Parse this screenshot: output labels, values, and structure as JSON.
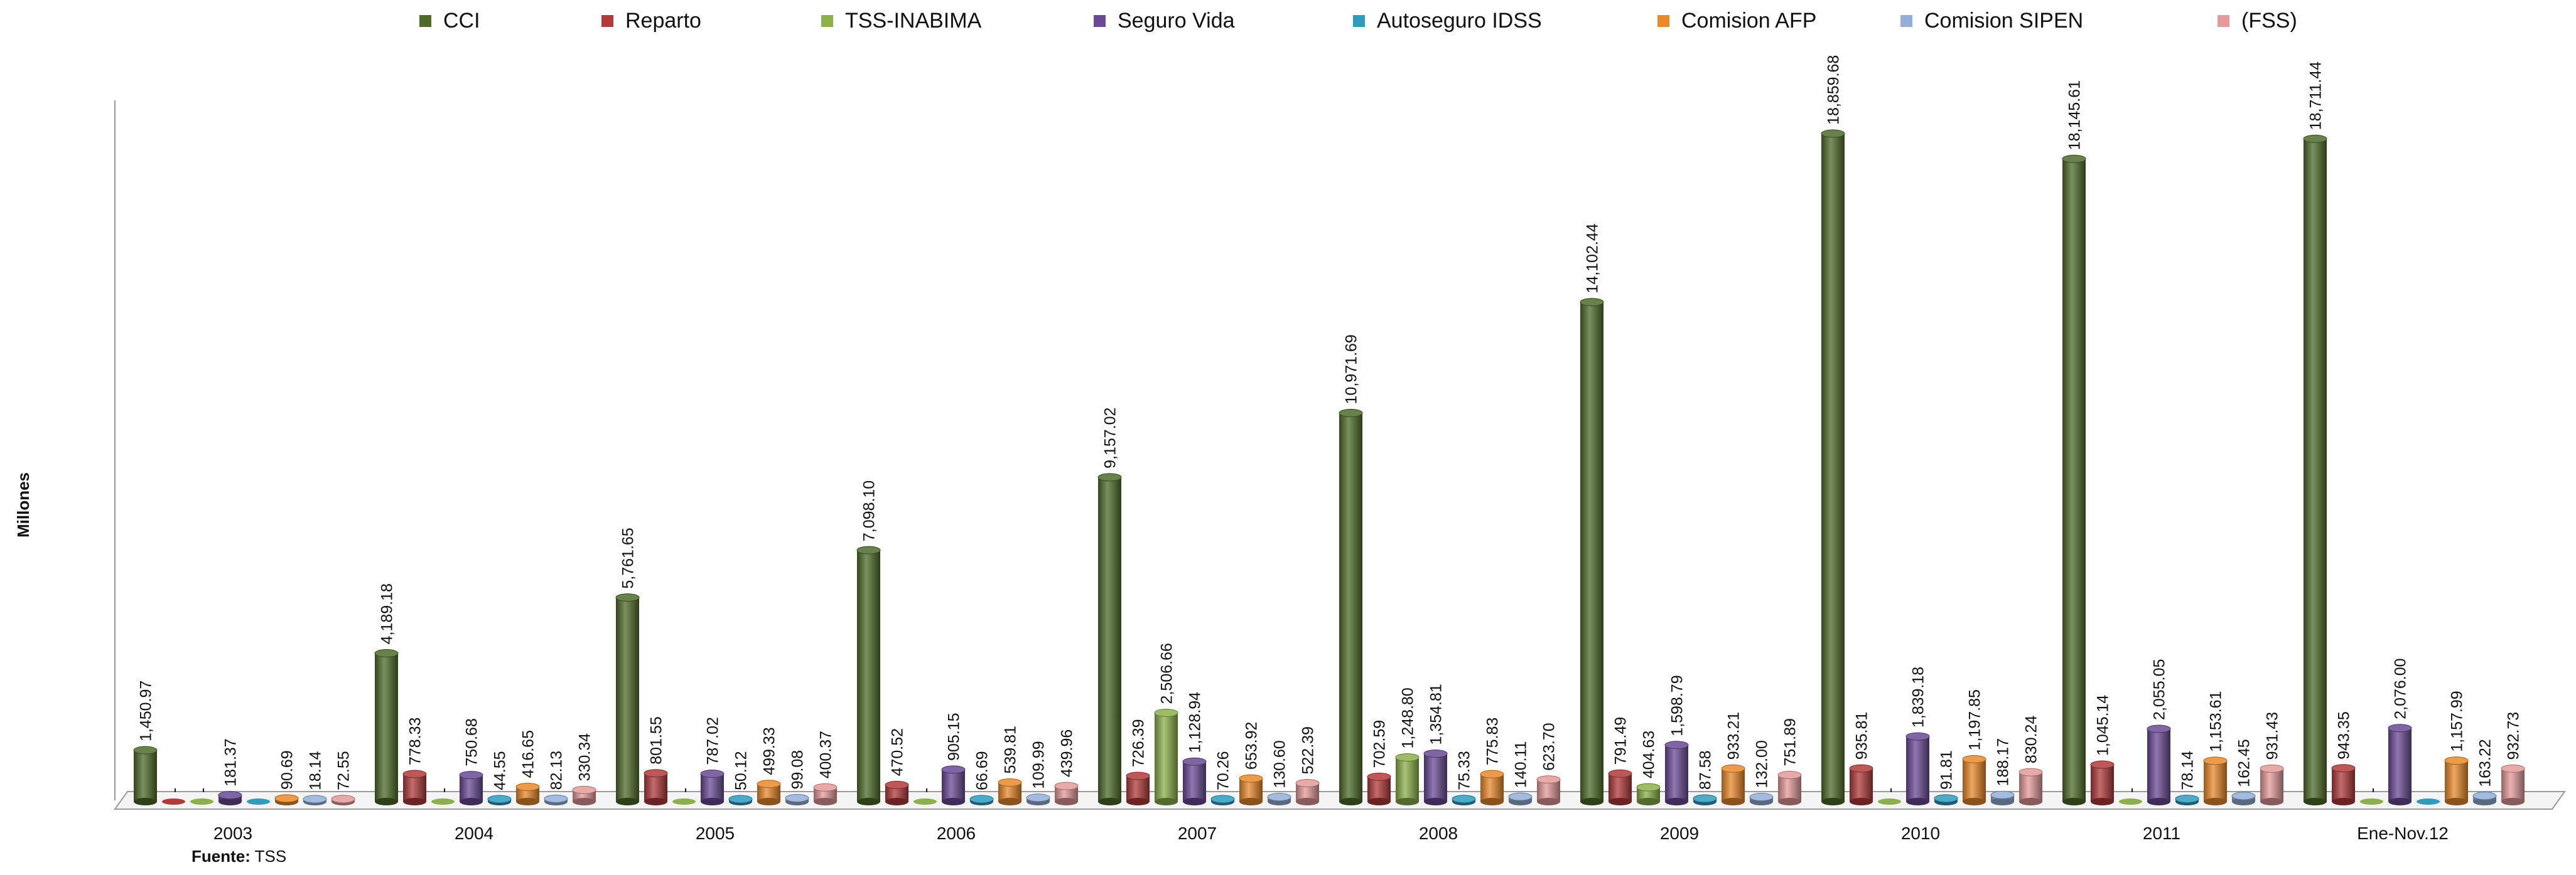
{
  "chart_data": {
    "type": "bar",
    "title": "",
    "ylabel": "Millones",
    "xlabel": "",
    "ylim": [
      0,
      20000
    ],
    "grid": false,
    "legend_position": "top",
    "categories": [
      "2003",
      "2004",
      "2005",
      "2006",
      "2007",
      "2008",
      "2009",
      "2010",
      "2011",
      "Ene-Nov.12"
    ],
    "series": [
      {
        "name": "CCI",
        "color": "#4e6b2a",
        "values": [
          1450.97,
          4189.18,
          5761.65,
          7098.1,
          9157.02,
          10971.69,
          14102.44,
          18859.68,
          18145.61,
          18711.44
        ],
        "labels": [
          "1,450.97",
          "4,189.18",
          "5,761.65",
          "7,098.10",
          "9,157.02",
          "10,971.69",
          "14,102.44",
          "18,859.68",
          "18,145.61",
          "18,711.44"
        ]
      },
      {
        "name": "Reparto",
        "color": "#b23a3a",
        "values": [
          0,
          778.33,
          801.55,
          470.52,
          726.39,
          702.59,
          791.49,
          935.81,
          1045.14,
          943.35
        ],
        "labels": [
          "-",
          "778.33",
          "801.55",
          "470.52",
          "726.39",
          "702.59",
          "791.49",
          "935.81",
          "1,045.14",
          "943.35"
        ]
      },
      {
        "name": "TSS-INABIMA",
        "color": "#8cb04a",
        "values": [
          0,
          0,
          0,
          0,
          2506.66,
          1248.8,
          404.63,
          0,
          0,
          0
        ],
        "labels": [
          "-",
          "-",
          "-",
          "-",
          "2,506.66",
          "1,248.80",
          "404.63",
          "-",
          "-",
          "-"
        ]
      },
      {
        "name": "Seguro Vida",
        "color": "#6a4a95",
        "values": [
          181.37,
          750.68,
          787.02,
          905.15,
          1128.94,
          1354.81,
          1598.79,
          1839.18,
          2055.05,
          2076.0
        ],
        "labels": [
          "181.37",
          "750.68",
          "787.02",
          "905.15",
          "1,128.94",
          "1,354.81",
          "1,598.79",
          "1,839.18",
          "2,055.05",
          "2,076.00"
        ]
      },
      {
        "name": "Autoseguro IDSS",
        "color": "#2f9bbf",
        "values": [
          0,
          44.55,
          50.12,
          66.69,
          70.26,
          75.33,
          87.58,
          91.81,
          78.14,
          0
        ],
        "labels": [
          "",
          "44.55",
          "50.12",
          "66.69",
          "70.26",
          "75.33",
          "87.58",
          "91.81",
          "78.14",
          ""
        ]
      },
      {
        "name": "Comision AFP",
        "color": "#e8892a",
        "values": [
          90.69,
          416.65,
          499.33,
          539.81,
          653.92,
          775.83,
          933.21,
          1197.85,
          1153.61,
          1157.99
        ],
        "labels": [
          "90.69",
          "416.65",
          "499.33",
          "539.81",
          "653.92",
          "775.83",
          "933.21",
          "1,197.85",
          "1,153.61",
          "1,157.99"
        ]
      },
      {
        "name": "Comision SIPEN",
        "color": "#93afd8",
        "values": [
          18.14,
          82.13,
          99.08,
          109.99,
          130.6,
          140.11,
          132.0,
          188.17,
          162.45,
          163.22
        ],
        "labels": [
          "18.14",
          "82.13",
          "99.08",
          "109.99",
          "130.60",
          "140.11",
          "132.00",
          "188.17",
          "162.45",
          "163.22"
        ]
      },
      {
        "name": "(FSS)",
        "color": "#e49a9a",
        "values": [
          72.55,
          330.34,
          400.37,
          439.96,
          522.39,
          623.7,
          751.89,
          830.24,
          931.43,
          932.73
        ],
        "labels": [
          "72.55",
          "330.34",
          "400.37",
          "439.96",
          "522.39",
          "623.70",
          "751.89",
          "830.24",
          "931.43",
          "932.73"
        ]
      }
    ]
  },
  "footer": {
    "source_label": "Fuente:",
    "source_value": "TSS"
  }
}
